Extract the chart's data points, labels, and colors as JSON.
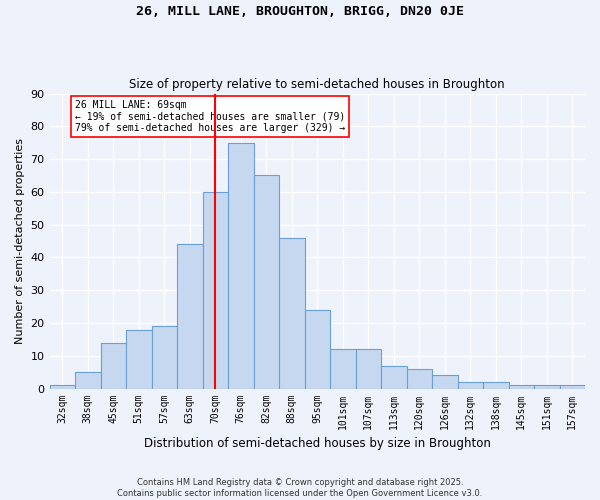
{
  "title1": "26, MILL LANE, BROUGHTON, BRIGG, DN20 0JE",
  "title2": "Size of property relative to semi-detached houses in Broughton",
  "xlabel": "Distribution of semi-detached houses by size in Broughton",
  "ylabel": "Number of semi-detached properties",
  "footer": "Contains HM Land Registry data © Crown copyright and database right 2025.\nContains public sector information licensed under the Open Government Licence v3.0.",
  "categories": [
    "32sqm",
    "38sqm",
    "45sqm",
    "51sqm",
    "57sqm",
    "63sqm",
    "70sqm",
    "76sqm",
    "82sqm",
    "88sqm",
    "95sqm",
    "101sqm",
    "107sqm",
    "113sqm",
    "120sqm",
    "126sqm",
    "132sqm",
    "138sqm",
    "145sqm",
    "151sqm",
    "157sqm"
  ],
  "values": [
    1,
    5,
    14,
    18,
    19,
    44,
    60,
    75,
    65,
    46,
    24,
    12,
    12,
    7,
    6,
    4,
    2,
    2,
    1,
    1,
    1
  ],
  "bar_color": "#c5d8f0",
  "bar_edge_color": "#6aa0d4",
  "vline_x": 6,
  "vline_color": "red",
  "annotation_title": "26 MILL LANE: 69sqm",
  "annotation_line1": "← 19% of semi-detached houses are smaller (79)",
  "annotation_line2": "79% of semi-detached houses are larger (329) →",
  "annotation_box_color": "white",
  "annotation_box_edge": "red",
  "ylim": [
    0,
    90
  ],
  "yticks": [
    0,
    10,
    20,
    30,
    40,
    50,
    60,
    70,
    80,
    90
  ],
  "bg_color": "#eef2fb",
  "plot_bg_color": "#eef2fb",
  "grid_color": "white"
}
